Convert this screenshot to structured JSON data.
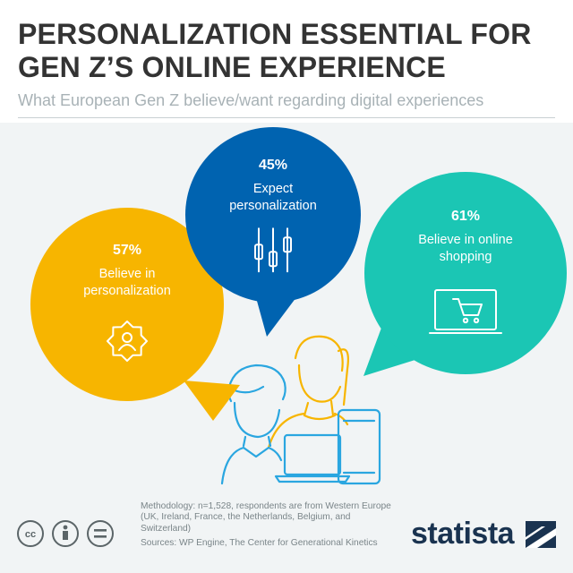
{
  "header": {
    "title_line1": "PERSONALIZATION ESSENTIAL FOR",
    "title_line2": "GEN Z’S ONLINE EXPERIENCE",
    "subtitle": "What European Gen Z believe/want regarding digital experiences"
  },
  "chart_data": {
    "type": "bubble-callouts",
    "unit": "%",
    "items": [
      {
        "label_lines": [
          "Believe in",
          "personalization"
        ],
        "value": 57,
        "value_text": "57%",
        "color": "#f7b500",
        "icon": "gear-person-icon"
      },
      {
        "label_lines": [
          "Expect",
          "personalization"
        ],
        "value": 45,
        "value_text": "45%",
        "color": "#0063b0",
        "icon": "slider-controls-icon"
      },
      {
        "label_lines": [
          "Believe in online",
          "shopping"
        ],
        "value": 61,
        "value_text": "61%",
        "color": "#1bc6b4",
        "icon": "laptop-cart-icon"
      }
    ]
  },
  "footer": {
    "methodology": "Methodology: n=1,528, respondents are from Western Europe (UK, Ireland, France, the Netherlands, Belgium, and Switzerland)",
    "sources": "Sources: WP Engine, The Center for Generational Kinetics",
    "license_icons": [
      {
        "name": "cc-icon",
        "glyph": "cc"
      },
      {
        "name": "attribution-icon",
        "glyph": "i"
      },
      {
        "name": "no-derivatives-icon",
        "glyph": "="
      }
    ],
    "brand": "statista"
  },
  "colors": {
    "background_panel": "#f1f4f5",
    "title": "#333333",
    "subtitle": "#a8b2b6",
    "illustration": "#2aa6e0",
    "illustration_accent": "#f7b500"
  }
}
